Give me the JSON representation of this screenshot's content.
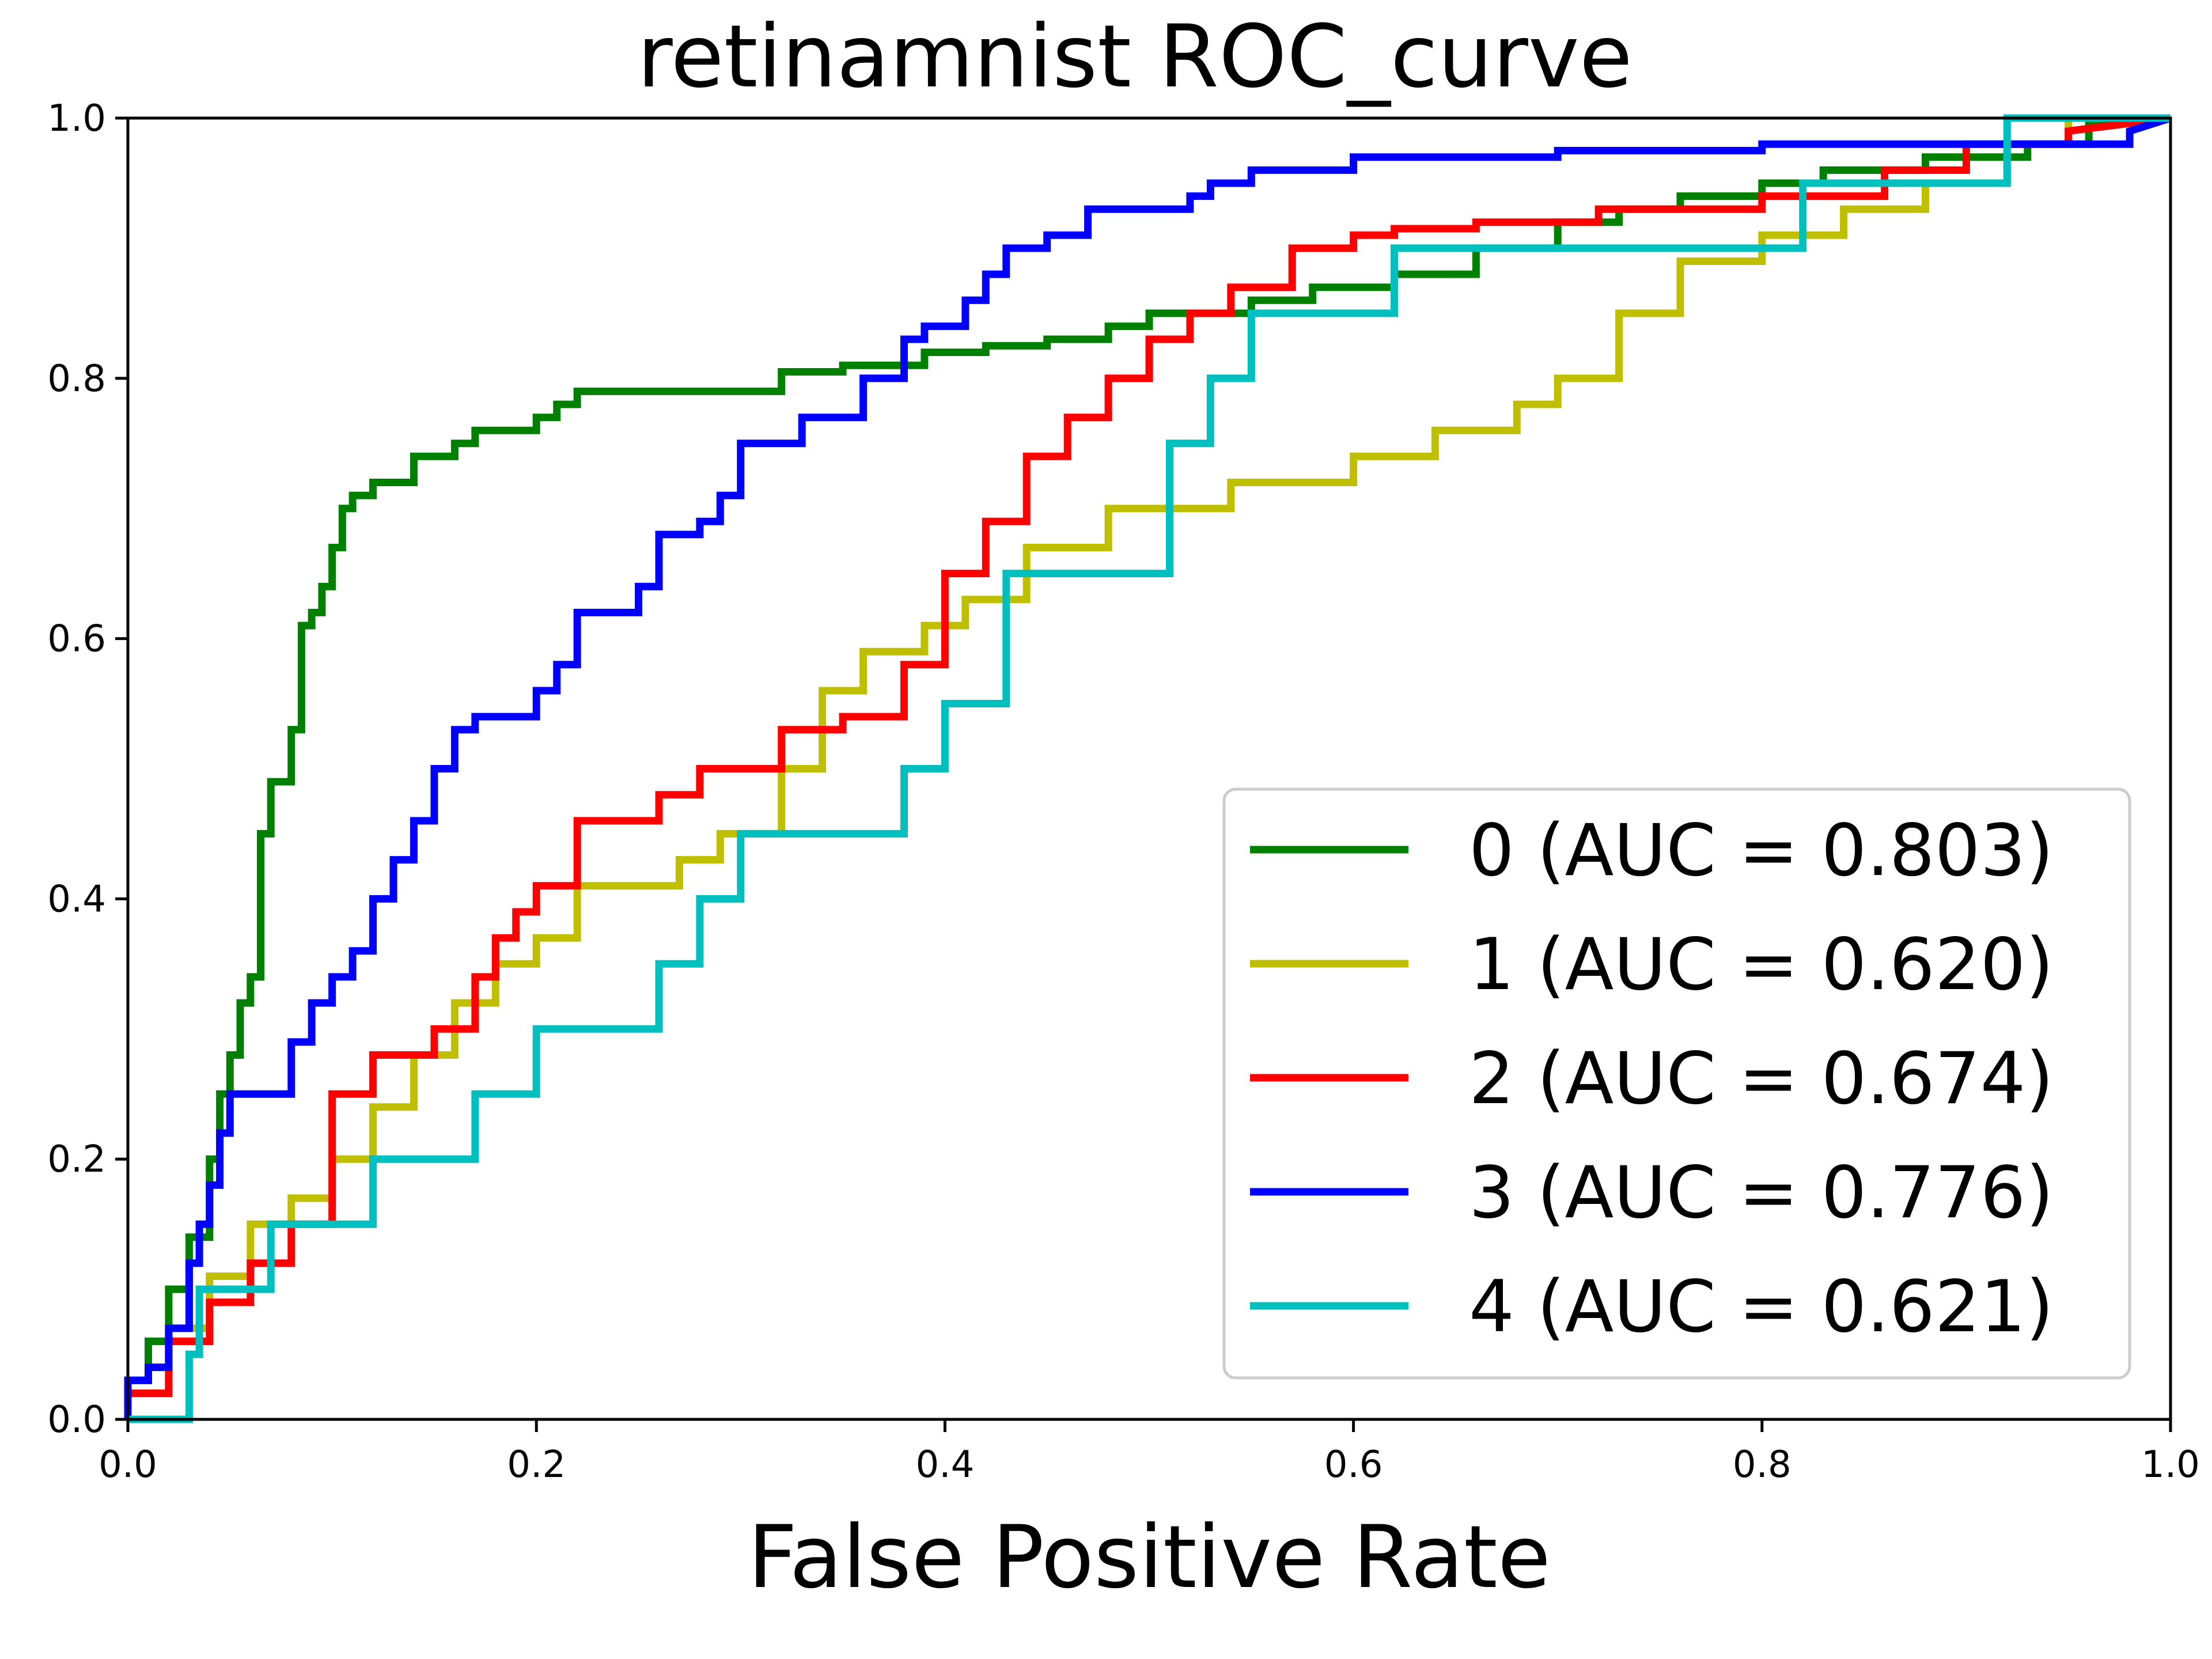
{
  "chart_data": {
    "type": "line",
    "title": "retinamnist ROC_curve",
    "xlabel": "False Positive Rate",
    "ylabel": "",
    "xlim": [
      0.0,
      1.0
    ],
    "ylim": [
      0.0,
      1.0
    ],
    "xticks": [
      "0.0",
      "0.2",
      "0.4",
      "0.6",
      "0.8",
      "1.0"
    ],
    "yticks": [
      "0.0",
      "0.2",
      "0.4",
      "0.6",
      "0.8",
      "1.0"
    ],
    "grid": false,
    "legend_position": "lower-right",
    "series": [
      {
        "name": "0 (AUC = 0.803)",
        "color": "#008000",
        "x": [
          0.0,
          0.0,
          0.01,
          0.01,
          0.02,
          0.02,
          0.03,
          0.03,
          0.04,
          0.04,
          0.045,
          0.045,
          0.05,
          0.05,
          0.055,
          0.055,
          0.06,
          0.06,
          0.065,
          0.065,
          0.07,
          0.07,
          0.08,
          0.08,
          0.085,
          0.085,
          0.09,
          0.09,
          0.095,
          0.095,
          0.1,
          0.1,
          0.105,
          0.105,
          0.11,
          0.11,
          0.12,
          0.12,
          0.14,
          0.14,
          0.16,
          0.16,
          0.17,
          0.17,
          0.2,
          0.2,
          0.21,
          0.21,
          0.22,
          0.22,
          0.24,
          0.24,
          0.32,
          0.32,
          0.35,
          0.35,
          0.39,
          0.39,
          0.42,
          0.42,
          0.45,
          0.45,
          0.48,
          0.48,
          0.5,
          0.5,
          0.55,
          0.55,
          0.58,
          0.58,
          0.62,
          0.62,
          0.66,
          0.66,
          0.7,
          0.7,
          0.73,
          0.73,
          0.76,
          0.76,
          0.8,
          0.8,
          0.83,
          0.83,
          0.88,
          0.88,
          0.93,
          0.93,
          0.96,
          0.96,
          1.0
        ],
        "y": [
          0.0,
          0.03,
          0.03,
          0.06,
          0.06,
          0.1,
          0.1,
          0.14,
          0.14,
          0.2,
          0.2,
          0.25,
          0.25,
          0.28,
          0.28,
          0.32,
          0.32,
          0.34,
          0.34,
          0.45,
          0.45,
          0.49,
          0.49,
          0.53,
          0.53,
          0.61,
          0.61,
          0.62,
          0.62,
          0.64,
          0.64,
          0.67,
          0.67,
          0.7,
          0.7,
          0.71,
          0.71,
          0.72,
          0.72,
          0.74,
          0.74,
          0.75,
          0.75,
          0.76,
          0.76,
          0.77,
          0.77,
          0.78,
          0.78,
          0.79,
          0.79,
          0.79,
          0.79,
          0.805,
          0.805,
          0.81,
          0.81,
          0.82,
          0.82,
          0.825,
          0.825,
          0.83,
          0.83,
          0.84,
          0.84,
          0.85,
          0.85,
          0.86,
          0.86,
          0.87,
          0.87,
          0.88,
          0.88,
          0.9,
          0.9,
          0.92,
          0.92,
          0.93,
          0.93,
          0.94,
          0.94,
          0.95,
          0.95,
          0.96,
          0.96,
          0.97,
          0.97,
          0.98,
          0.98,
          0.995,
          1.0
        ]
      },
      {
        "name": "1 (AUC = 0.620)",
        "color": "#bfbf00",
        "x": [
          0.0,
          0.0,
          0.02,
          0.02,
          0.04,
          0.04,
          0.06,
          0.06,
          0.08,
          0.08,
          0.1,
          0.1,
          0.12,
          0.12,
          0.14,
          0.14,
          0.16,
          0.16,
          0.18,
          0.18,
          0.2,
          0.2,
          0.22,
          0.22,
          0.27,
          0.27,
          0.29,
          0.29,
          0.32,
          0.32,
          0.34,
          0.34,
          0.36,
          0.36,
          0.39,
          0.39,
          0.41,
          0.41,
          0.44,
          0.44,
          0.48,
          0.48,
          0.54,
          0.54,
          0.6,
          0.6,
          0.64,
          0.64,
          0.68,
          0.68,
          0.7,
          0.7,
          0.73,
          0.73,
          0.76,
          0.76,
          0.8,
          0.8,
          0.84,
          0.84,
          0.88,
          0.88,
          0.92,
          0.92,
          0.95,
          0.95,
          1.0
        ],
        "y": [
          0.0,
          0.02,
          0.02,
          0.07,
          0.07,
          0.11,
          0.11,
          0.15,
          0.15,
          0.17,
          0.17,
          0.2,
          0.2,
          0.24,
          0.24,
          0.28,
          0.28,
          0.32,
          0.32,
          0.35,
          0.35,
          0.37,
          0.37,
          0.41,
          0.41,
          0.43,
          0.43,
          0.45,
          0.45,
          0.5,
          0.5,
          0.56,
          0.56,
          0.59,
          0.59,
          0.61,
          0.61,
          0.63,
          0.63,
          0.67,
          0.67,
          0.7,
          0.7,
          0.72,
          0.72,
          0.74,
          0.74,
          0.76,
          0.76,
          0.78,
          0.78,
          0.8,
          0.8,
          0.85,
          0.85,
          0.89,
          0.89,
          0.91,
          0.91,
          0.93,
          0.93,
          0.95,
          0.95,
          0.98,
          0.98,
          1.0,
          1.0
        ]
      },
      {
        "name": "2 (AUC = 0.674)",
        "color": "#ff0000",
        "x": [
          0.0,
          0.0,
          0.02,
          0.02,
          0.04,
          0.04,
          0.06,
          0.06,
          0.08,
          0.08,
          0.1,
          0.1,
          0.12,
          0.12,
          0.15,
          0.15,
          0.17,
          0.17,
          0.18,
          0.18,
          0.19,
          0.19,
          0.2,
          0.2,
          0.22,
          0.22,
          0.26,
          0.26,
          0.28,
          0.28,
          0.32,
          0.32,
          0.35,
          0.35,
          0.38,
          0.38,
          0.4,
          0.4,
          0.42,
          0.42,
          0.44,
          0.44,
          0.46,
          0.46,
          0.48,
          0.48,
          0.5,
          0.5,
          0.52,
          0.52,
          0.54,
          0.54,
          0.57,
          0.57,
          0.6,
          0.6,
          0.62,
          0.62,
          0.66,
          0.66,
          0.72,
          0.72,
          0.8,
          0.8,
          0.86,
          0.86,
          0.9,
          0.9,
          0.95,
          0.95,
          1.0
        ],
        "y": [
          0.0,
          0.02,
          0.02,
          0.06,
          0.06,
          0.09,
          0.09,
          0.12,
          0.12,
          0.15,
          0.15,
          0.25,
          0.25,
          0.28,
          0.28,
          0.3,
          0.3,
          0.34,
          0.34,
          0.37,
          0.37,
          0.39,
          0.39,
          0.41,
          0.41,
          0.46,
          0.46,
          0.48,
          0.48,
          0.5,
          0.5,
          0.53,
          0.53,
          0.54,
          0.54,
          0.58,
          0.58,
          0.65,
          0.65,
          0.69,
          0.69,
          0.74,
          0.74,
          0.77,
          0.77,
          0.8,
          0.8,
          0.83,
          0.83,
          0.85,
          0.85,
          0.87,
          0.87,
          0.9,
          0.9,
          0.91,
          0.91,
          0.915,
          0.915,
          0.92,
          0.92,
          0.93,
          0.93,
          0.94,
          0.94,
          0.96,
          0.96,
          0.98,
          0.98,
          0.99,
          1.0
        ]
      },
      {
        "name": "3 (AUC = 0.776)",
        "color": "#0000ff",
        "x": [
          0.0,
          0.0,
          0.01,
          0.01,
          0.02,
          0.02,
          0.03,
          0.03,
          0.035,
          0.035,
          0.04,
          0.04,
          0.045,
          0.045,
          0.05,
          0.05,
          0.06,
          0.06,
          0.08,
          0.08,
          0.09,
          0.09,
          0.1,
          0.1,
          0.11,
          0.11,
          0.12,
          0.12,
          0.13,
          0.13,
          0.14,
          0.14,
          0.15,
          0.15,
          0.16,
          0.16,
          0.17,
          0.17,
          0.2,
          0.2,
          0.21,
          0.21,
          0.22,
          0.22,
          0.25,
          0.25,
          0.26,
          0.26,
          0.28,
          0.28,
          0.29,
          0.29,
          0.3,
          0.3,
          0.33,
          0.33,
          0.36,
          0.36,
          0.38,
          0.38,
          0.39,
          0.39,
          0.41,
          0.41,
          0.42,
          0.42,
          0.43,
          0.43,
          0.45,
          0.45,
          0.47,
          0.47,
          0.52,
          0.52,
          0.53,
          0.53,
          0.55,
          0.55,
          0.6,
          0.6,
          0.7,
          0.7,
          0.8,
          0.8,
          0.98,
          0.98,
          1.0
        ],
        "y": [
          0.0,
          0.03,
          0.03,
          0.04,
          0.04,
          0.07,
          0.07,
          0.12,
          0.12,
          0.15,
          0.15,
          0.18,
          0.18,
          0.22,
          0.22,
          0.25,
          0.25,
          0.25,
          0.25,
          0.29,
          0.29,
          0.32,
          0.32,
          0.34,
          0.34,
          0.36,
          0.36,
          0.4,
          0.4,
          0.43,
          0.43,
          0.46,
          0.46,
          0.5,
          0.5,
          0.53,
          0.53,
          0.54,
          0.54,
          0.56,
          0.56,
          0.58,
          0.58,
          0.62,
          0.62,
          0.64,
          0.64,
          0.68,
          0.68,
          0.69,
          0.69,
          0.71,
          0.71,
          0.75,
          0.75,
          0.77,
          0.77,
          0.8,
          0.8,
          0.83,
          0.83,
          0.84,
          0.84,
          0.86,
          0.86,
          0.88,
          0.88,
          0.9,
          0.9,
          0.91,
          0.91,
          0.93,
          0.93,
          0.94,
          0.94,
          0.95,
          0.95,
          0.96,
          0.96,
          0.97,
          0.97,
          0.975,
          0.975,
          0.98,
          0.98,
          0.99,
          1.0
        ]
      },
      {
        "name": "4 (AUC = 0.621)",
        "color": "#00bfbf",
        "x": [
          0.0,
          0.0,
          0.03,
          0.03,
          0.035,
          0.035,
          0.07,
          0.07,
          0.12,
          0.12,
          0.17,
          0.17,
          0.2,
          0.2,
          0.26,
          0.26,
          0.28,
          0.28,
          0.3,
          0.3,
          0.38,
          0.38,
          0.4,
          0.4,
          0.43,
          0.43,
          0.51,
          0.51,
          0.53,
          0.53,
          0.55,
          0.55,
          0.62,
          0.62,
          0.7,
          0.7,
          0.82,
          0.82,
          0.92,
          0.92,
          1.0
        ],
        "y": [
          0.0,
          0.0,
          0.0,
          0.05,
          0.05,
          0.1,
          0.1,
          0.15,
          0.15,
          0.2,
          0.2,
          0.25,
          0.25,
          0.3,
          0.3,
          0.35,
          0.35,
          0.4,
          0.4,
          0.45,
          0.45,
          0.5,
          0.5,
          0.55,
          0.55,
          0.65,
          0.65,
          0.75,
          0.75,
          0.8,
          0.8,
          0.85,
          0.85,
          0.9,
          0.9,
          0.9,
          0.9,
          0.95,
          0.95,
          1.0,
          1.0
        ]
      }
    ]
  }
}
